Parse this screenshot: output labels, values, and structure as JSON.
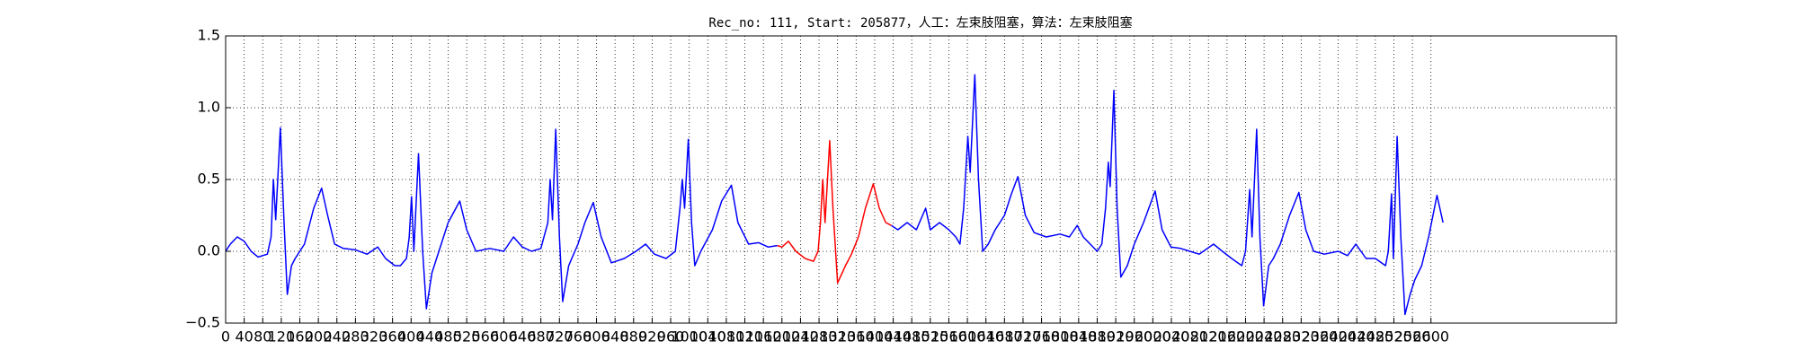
{
  "chart_data": {
    "type": "line",
    "title": "Rec_no: 111, Start: 205877，人工：左束肢阻塞，算法：左束肢阻塞",
    "x": [
      0,
      10,
      25,
      40,
      55,
      70,
      90,
      98,
      103,
      108,
      118,
      126,
      133,
      142,
      150,
      170,
      190,
      207,
      220,
      235,
      254,
      280,
      305,
      328,
      345,
      365,
      377,
      390,
      396,
      401,
      406,
      416,
      425,
      433,
      445,
      460,
      480,
      505,
      520,
      540,
      570,
      600,
      621,
      640,
      660,
      680,
      695,
      700,
      705,
      712,
      720,
      727,
      740,
      760,
      775,
      793,
      810,
      832,
      860,
      885,
      906,
      925,
      950,
      970,
      980,
      985,
      990,
      998,
      1005,
      1012,
      1025,
      1050,
      1070,
      1091,
      1105,
      1128,
      1150,
      1170,
      1190,
      1200,
      1214,
      1230,
      1250,
      1268,
      1278,
      1283,
      1288,
      1293,
      1303,
      1310,
      1320,
      1330,
      1337,
      1350,
      1365,
      1380,
      1397,
      1410,
      1424,
      1436,
      1450,
      1470,
      1490,
      1510,
      1520,
      1540,
      1560,
      1575,
      1584,
      1592,
      1601,
      1606,
      1616,
      1624,
      1633,
      1645,
      1660,
      1680,
      1695,
      1709,
      1725,
      1744,
      1770,
      1800,
      1820,
      1837,
      1850,
      1865,
      1880,
      1890,
      1898,
      1904,
      1908,
      1916,
      1923,
      1931,
      1945,
      1960,
      1980,
      2005,
      2020,
      2039,
      2060,
      2080,
      2100,
      2131,
      2150,
      2170,
      2192,
      2200,
      2209,
      2214,
      2224,
      2231,
      2239,
      2250,
      2260,
      2275,
      2295,
      2315,
      2330,
      2347,
      2370,
      2400,
      2420,
      2438,
      2460,
      2480,
      2502,
      2508,
      2515,
      2519,
      2527,
      2535,
      2544,
      2555,
      2565,
      2580,
      2595,
      2613,
      2626
    ],
    "series": [
      {
        "color": "#0000ff",
        "values": [
          0.0,
          0.05,
          0.1,
          0.07,
          0.0,
          -0.04,
          -0.02,
          0.1,
          0.5,
          0.22,
          0.86,
          0.2,
          -0.3,
          -0.1,
          -0.05,
          0.05,
          0.3,
          0.44,
          0.25,
          0.05,
          0.02,
          0.01,
          -0.02,
          0.03,
          -0.05,
          -0.1,
          -0.1,
          -0.05,
          0.1,
          0.38,
          0.0,
          0.68,
          0.0,
          -0.4,
          -0.15,
          0.0,
          0.2,
          0.35,
          0.15,
          0.0,
          0.02,
          0.0,
          0.1,
          0.03,
          0.0,
          0.02,
          0.2,
          0.5,
          0.22,
          0.85,
          0.1,
          -0.35,
          -0.1,
          0.05,
          0.2,
          0.34,
          0.1,
          -0.08,
          -0.05,
          0.0,
          0.05,
          -0.02,
          -0.05,
          0.0,
          0.3,
          0.5,
          0.3,
          0.78,
          0.2,
          -0.1,
          0.0,
          0.15,
          0.35,
          0.46,
          0.2,
          0.05,
          0.06,
          0.03,
          0.04,
          null,
          null,
          null,
          null,
          null,
          null,
          null,
          null,
          null,
          null,
          null,
          null,
          null,
          null,
          null,
          null,
          null,
          null,
          null,
          null,
          0.18,
          0.15,
          0.2,
          0.15,
          0.3,
          0.15,
          0.2,
          0.15,
          0.1,
          0.05,
          0.3,
          0.8,
          0.55,
          1.23,
          0.5,
          0.0,
          0.05,
          0.15,
          0.25,
          0.4,
          0.52,
          0.25,
          0.13,
          0.1,
          0.12,
          0.1,
          0.18,
          0.1,
          0.05,
          0.0,
          0.05,
          0.3,
          0.62,
          0.45,
          1.12,
          0.3,
          -0.18,
          -0.1,
          0.05,
          0.2,
          0.42,
          0.15,
          0.03,
          0.02,
          0.0,
          -0.02,
          0.05,
          0.0,
          -0.05,
          -0.1,
          0.0,
          0.43,
          0.1,
          0.85,
          0.1,
          -0.38,
          -0.1,
          -0.05,
          0.05,
          0.25,
          0.41,
          0.15,
          0.0,
          -0.02,
          0.0,
          -0.03,
          0.05,
          -0.05,
          -0.05,
          -0.1,
          0.0,
          0.4,
          -0.05,
          0.8,
          0.1,
          -0.44,
          -0.3,
          -0.2,
          -0.1,
          0.1,
          0.39,
          0.2
        ]
      },
      {
        "color": "#ff0000",
        "values": [
          null,
          null,
          null,
          null,
          null,
          null,
          null,
          null,
          null,
          null,
          null,
          null,
          null,
          null,
          null,
          null,
          null,
          null,
          null,
          null,
          null,
          null,
          null,
          null,
          null,
          null,
          null,
          null,
          null,
          null,
          null,
          null,
          null,
          null,
          null,
          null,
          null,
          null,
          null,
          null,
          null,
          null,
          null,
          null,
          null,
          null,
          null,
          null,
          null,
          null,
          null,
          null,
          null,
          null,
          null,
          null,
          null,
          null,
          null,
          null,
          null,
          null,
          null,
          null,
          null,
          null,
          null,
          null,
          null,
          null,
          null,
          null,
          null,
          null,
          null,
          null,
          null,
          null,
          0.04,
          0.03,
          0.07,
          0.0,
          -0.05,
          -0.07,
          0.0,
          0.2,
          0.5,
          0.2,
          0.77,
          0.3,
          -0.22,
          -0.15,
          -0.1,
          -0.02,
          0.1,
          0.3,
          0.47,
          0.3,
          0.2,
          0.18,
          null,
          null,
          null,
          null,
          null,
          null,
          null,
          null,
          null,
          null,
          null,
          null,
          null,
          null,
          null,
          null,
          null,
          null,
          null,
          null,
          null,
          null,
          null,
          null,
          null,
          null,
          null,
          null,
          null,
          null,
          null,
          null,
          null,
          null,
          null,
          null,
          null,
          null,
          null,
          null,
          null,
          null,
          null,
          null,
          null,
          null,
          null,
          null,
          null,
          null,
          null,
          null,
          null,
          null,
          null,
          null,
          null,
          null,
          null,
          null,
          null,
          null,
          null,
          null,
          null,
          null,
          null,
          null,
          null,
          null,
          null,
          null,
          null,
          null,
          null,
          null,
          null,
          null,
          null,
          null,
          null
        ]
      }
    ],
    "xlim": [
      0,
      3000
    ],
    "xticks": [
      0,
      40,
      80,
      120,
      160,
      200,
      240,
      280,
      320,
      360,
      400,
      440,
      480,
      520,
      560,
      600,
      640,
      680,
      720,
      760,
      800,
      840,
      880,
      920,
      960,
      1000,
      1040,
      1080,
      1120,
      1160,
      1200,
      1240,
      1280,
      1320,
      1360,
      1400,
      1440,
      1480,
      1520,
      1560,
      1600,
      1640,
      1680,
      1720,
      1760,
      1800,
      1840,
      1880,
      1920,
      1960,
      2000,
      2040,
      2080,
      2120,
      2160,
      2200,
      2240,
      2280,
      2320,
      2360,
      2400,
      2440,
      2480,
      2520,
      2560,
      2600
    ],
    "ylim": [
      -0.5,
      1.5
    ],
    "yticks": [
      {
        "value": -0.5,
        "label": "−0.5"
      },
      {
        "value": 0,
        "label": "0.0"
      },
      0.5,
      {
        "value": 1,
        "label": "1.0"
      },
      1.5
    ],
    "grid": true
  }
}
